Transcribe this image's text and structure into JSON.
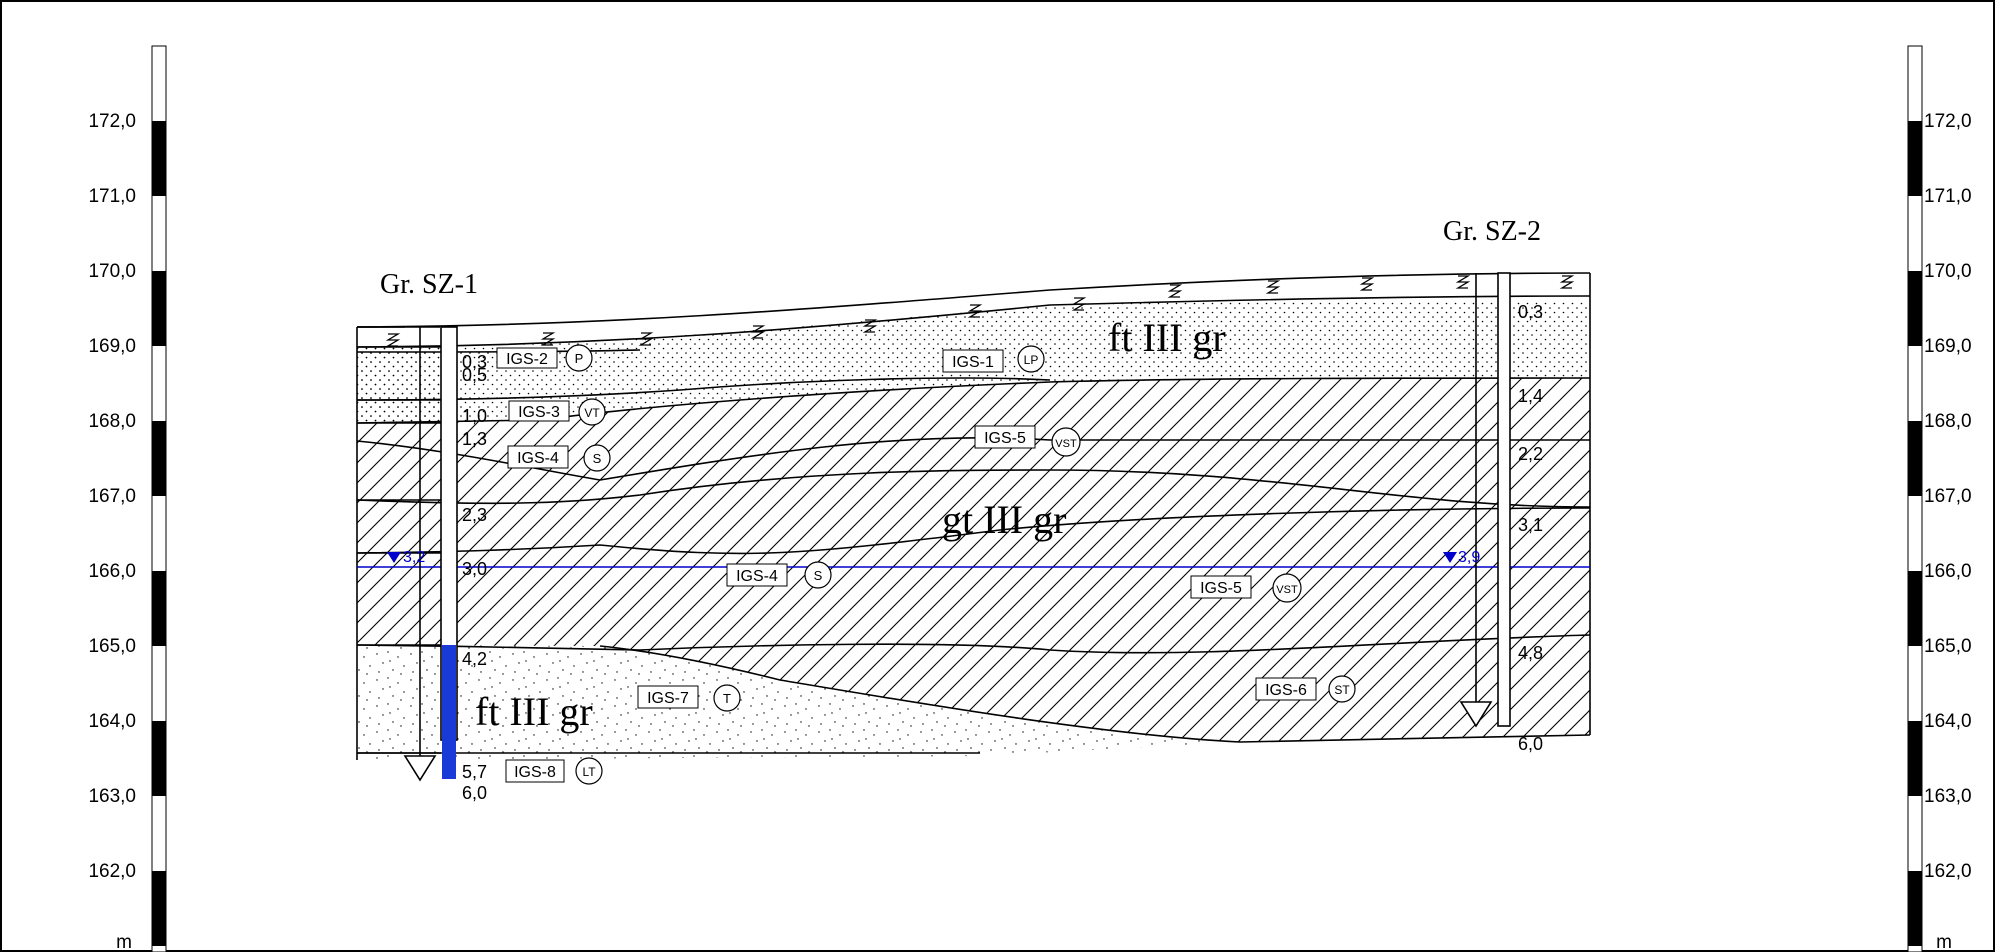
{
  "scale": {
    "unit": "m",
    "ticks": [
      "172,0",
      "171,0",
      "170,0",
      "169,0",
      "168,0",
      "167,0",
      "166,0",
      "165,0",
      "164,0",
      "163,0",
      "162,0"
    ]
  },
  "boreholes": [
    {
      "name": "Gr. SZ-1",
      "depths": [
        "0,3",
        "0,5",
        "1,0",
        "1,3",
        "2,3",
        "3,0",
        "4,2",
        "5,7",
        "6,0"
      ],
      "water_level": "3,2"
    },
    {
      "name": "Gr. SZ-2",
      "depths": [
        "0,3",
        "1,4",
        "2,2",
        "3,1",
        "4,8",
        "6,0"
      ],
      "water_level": "3,9"
    }
  ],
  "labels": {
    "igs": [
      "IGS-2",
      "IGS-3",
      "IGS-4",
      "IGS-1",
      "IGS-5",
      "IGS-4",
      "IGS-5",
      "IGS-7",
      "IGS-6",
      "IGS-8"
    ],
    "soils": [
      "P",
      "VT",
      "S",
      "LP",
      "VST",
      "S",
      "VST",
      "T",
      "ST",
      "LT"
    ],
    "formations": [
      "ft III gr",
      "gt III gr",
      "ft III gr"
    ]
  },
  "colors": {
    "line": "#000000",
    "water": "#0000cc",
    "sample": "#1a3ad8"
  }
}
